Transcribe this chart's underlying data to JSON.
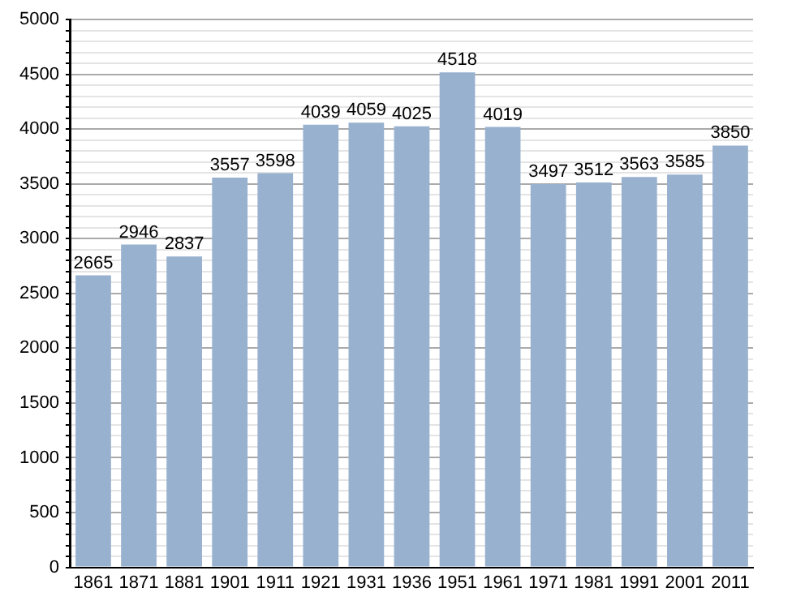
{
  "chart_data": {
    "type": "bar",
    "categories": [
      "1861",
      "1871",
      "1881",
      "1901",
      "1911",
      "1921",
      "1931",
      "1936",
      "1951",
      "1961",
      "1971",
      "1981",
      "1991",
      "2001",
      "2011"
    ],
    "values": [
      2665,
      2946,
      2837,
      3557,
      3598,
      4039,
      4059,
      4025,
      4518,
      4019,
      3497,
      3512,
      3563,
      3585,
      3850
    ],
    "color": "#98b1cf",
    "ylim": [
      0,
      5000
    ],
    "yticks": [
      0,
      {
        "value": 100,
        "label": null
      },
      {
        "value": 200,
        "label": null
      },
      {
        "value": 300,
        "label": null
      },
      {
        "value": 400,
        "label": null
      },
      500,
      {
        "value": 600,
        "label": null
      },
      {
        "value": 700,
        "label": null
      },
      {
        "value": 800,
        "label": null
      },
      {
        "value": 900,
        "label": null
      },
      1000,
      {
        "value": 1100,
        "label": null
      },
      {
        "value": 1200,
        "label": null
      },
      {
        "value": 1300,
        "label": null
      },
      {
        "value": 1400,
        "label": null
      },
      1500,
      {
        "value": 1600,
        "label": null
      },
      {
        "value": 1700,
        "label": null
      },
      {
        "value": 1800,
        "label": null
      },
      {
        "value": 1900,
        "label": null
      },
      2000,
      {
        "value": 2100,
        "label": null
      },
      {
        "value": 2200,
        "label": null
      },
      {
        "value": 2300,
        "label": null
      },
      {
        "value": 2400,
        "label": null
      },
      2500,
      {
        "value": 2600,
        "label": null
      },
      {
        "value": 2700,
        "label": null
      },
      {
        "value": 2800,
        "label": null
      },
      {
        "value": 2900,
        "label": null
      },
      3000,
      {
        "value": 3100,
        "label": null
      },
      {
        "value": 3200,
        "label": null
      },
      {
        "value": 3300,
        "label": null
      },
      {
        "value": 3400,
        "label": null
      },
      3500,
      {
        "value": 3600,
        "label": null
      },
      {
        "value": 3700,
        "label": null
      },
      {
        "value": 3800,
        "label": null
      },
      {
        "value": 3900,
        "label": null
      },
      4000,
      {
        "value": 4100,
        "label": null
      },
      {
        "value": 4200,
        "label": null
      },
      {
        "value": 4300,
        "label": null
      },
      {
        "value": 4400,
        "label": null
      },
      4500,
      {
        "value": 4600,
        "label": null
      },
      {
        "value": 4700,
        "label": null
      },
      {
        "value": 4800,
        "label": null
      },
      {
        "value": 4900,
        "label": null
      },
      5000
    ],
    "grid": "y",
    "data_labels": true
  }
}
